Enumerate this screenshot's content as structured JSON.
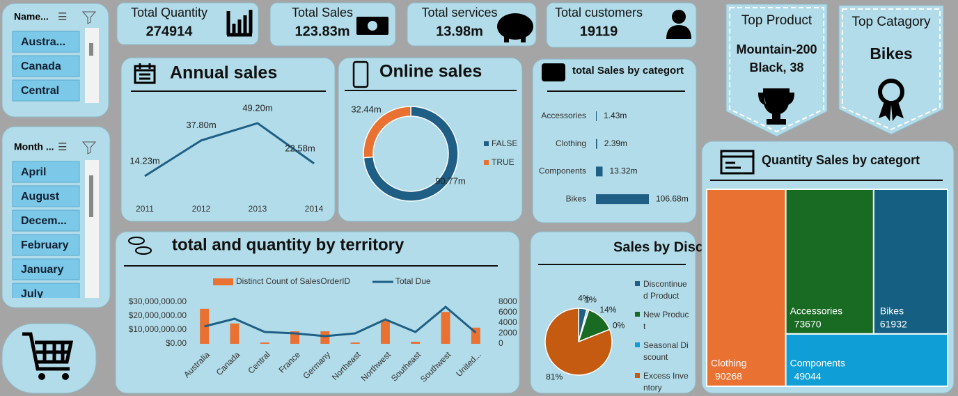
{
  "slicers": [
    {
      "title": "Name...",
      "items": [
        "Austra...",
        "Canada",
        "Central"
      ]
    },
    {
      "title": "Month ...",
      "items": [
        "April",
        "August",
        "Decem...",
        "February",
        "January",
        "July"
      ]
    }
  ],
  "kpis": [
    {
      "label": "Total Quantity",
      "value": "274914"
    },
    {
      "label": "Total Sales",
      "value": "123.83m"
    },
    {
      "label": "Total services",
      "value": "13.98m"
    },
    {
      "label": "Total customers",
      "value": "19119"
    }
  ],
  "top_cards": [
    {
      "title": "Top Product",
      "value": "Mountain-200 Black, 38"
    },
    {
      "title": "Top Catagory",
      "value": "Bikes"
    }
  ],
  "chart_data": [
    {
      "type": "line",
      "title": "Annual sales",
      "categories": [
        "2011",
        "2012",
        "2013",
        "2014"
      ],
      "values": [
        14.23,
        37.8,
        49.2,
        22.58
      ],
      "value_labels": [
        "14.23m",
        "37.80m",
        "49.20m",
        "22.58m"
      ],
      "color": "#1f5f85"
    },
    {
      "type": "donut",
      "title": "Online sales",
      "categories": [
        "FALSE",
        "TRUE"
      ],
      "values": [
        90.77,
        32.44
      ],
      "value_labels": [
        "90.77m",
        "32.44m"
      ],
      "colors": [
        "#1f5f85",
        "#e97132"
      ]
    },
    {
      "type": "bar",
      "orientation": "horizontal",
      "title": "total Sales by categort",
      "categories": [
        "Accessories",
        "Clothing",
        "Components",
        "Bikes"
      ],
      "values": [
        1.43,
        2.39,
        13.32,
        106.68
      ],
      "value_labels": [
        "1.43m",
        "2.39m",
        "13.32m",
        "106.68m"
      ],
      "color": "#1f5f85"
    },
    {
      "type": "combo",
      "title": "total and quantity by territory",
      "categories": [
        "Australia",
        "Canada",
        "Central",
        "France",
        "Germany",
        "Northeast",
        "Northwest",
        "Southeast",
        "Southwest",
        "United..."
      ],
      "series": [
        {
          "name": "Distinct Count of SalesOrderID",
          "type": "bar",
          "axis": "y2",
          "color": "#e97132",
          "values": [
            6700,
            3900,
            250,
            2400,
            2400,
            250,
            4400,
            400,
            6100,
            3100
          ]
        },
        {
          "name": "Total Due",
          "type": "line",
          "color": "#1f5f85",
          "values": [
            12500000,
            18000000,
            8500000,
            7500000,
            5500000,
            7500000,
            17500000,
            8500000,
            26500000,
            8000000
          ]
        }
      ],
      "ylim": [
        0,
        30000000
      ],
      "yticks": [
        {
          "value": 0,
          "label": "$0.00"
        },
        {
          "value": 10000000,
          "label": "$10,000,000.00"
        },
        {
          "value": 20000000,
          "label": "$20,000,000.00"
        },
        {
          "value": 30000000,
          "label": "$30,000,000.00"
        }
      ],
      "y2lim": [
        0,
        8000
      ],
      "y2ticks": [
        0,
        2000,
        4000,
        6000,
        8000
      ],
      "legend": "top"
    },
    {
      "type": "pie",
      "title": "Sales by Discount",
      "categories": [
        "Discontinued Product",
        null,
        "New Product",
        "Seasonal Discount",
        "Excess Inventory"
      ],
      "values": [
        4,
        1,
        14,
        0,
        81
      ],
      "value_labels": [
        "4%",
        "1%",
        "14%",
        "0%",
        "81%"
      ],
      "colors": [
        "#1f5f85",
        "#9dc3e6",
        "#196b24",
        "#0f9ed5",
        "#c55a11"
      ]
    },
    {
      "type": "treemap",
      "title": "Quantity Sales by categort",
      "categories": [
        "Clothing",
        "Accessories",
        "Bikes",
        "Components"
      ],
      "values": [
        90268,
        73670,
        61932,
        49044
      ],
      "colors": [
        "#e97132",
        "#196b24",
        "#156082",
        "#0f9ed5"
      ]
    }
  ]
}
